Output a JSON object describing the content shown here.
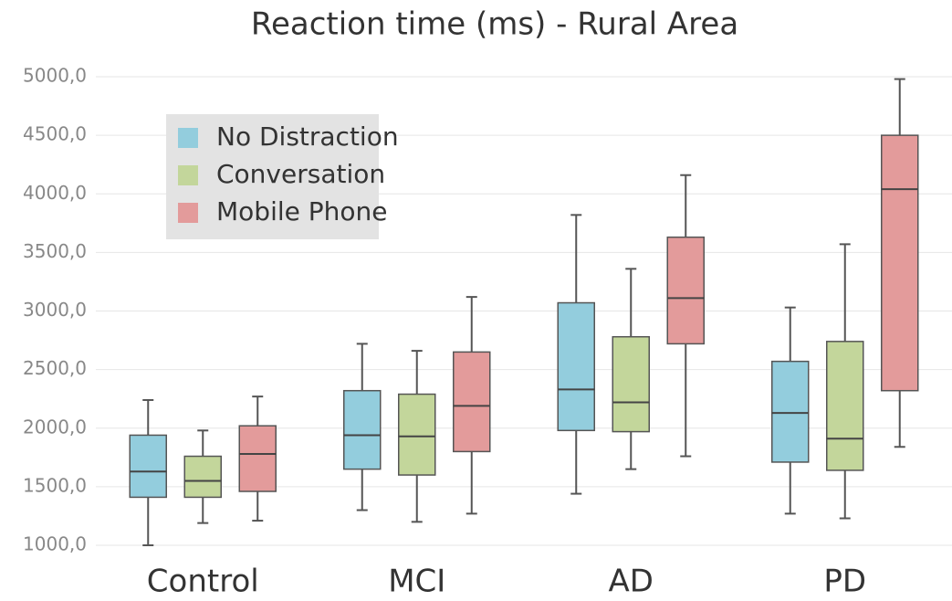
{
  "chart_data": {
    "type": "box",
    "title": "Reaction time (ms) - Rural Area",
    "categories": [
      "Control",
      "MCI",
      "AD",
      "PD"
    ],
    "ylim": [
      1000,
      5000
    ],
    "yticks": [
      {
        "value": 1000,
        "label": "1000,0"
      },
      {
        "value": 1500,
        "label": "1500,0"
      },
      {
        "value": 2000,
        "label": "2000,0"
      },
      {
        "value": 2500,
        "label": "2500,0"
      },
      {
        "value": 3000,
        "label": "3000,0"
      },
      {
        "value": 3500,
        "label": "3500,0"
      },
      {
        "value": 4000,
        "label": "4000,0"
      },
      {
        "value": 4500,
        "label": "4500,0"
      },
      {
        "value": 5000,
        "label": "5000,0"
      }
    ],
    "grid": true,
    "legend": "upper left",
    "series": [
      {
        "name": "No Distraction",
        "color": "#93cddd",
        "values": [
          {
            "min": 1000,
            "q1": 1410,
            "median": 1630,
            "q3": 1940,
            "max": 2240
          },
          {
            "min": 1300,
            "q1": 1650,
            "median": 1940,
            "q3": 2320,
            "max": 2720
          },
          {
            "min": 1440,
            "q1": 1980,
            "median": 2330,
            "q3": 3070,
            "max": 3820
          },
          {
            "min": 1270,
            "q1": 1710,
            "median": 2130,
            "q3": 2570,
            "max": 3030
          }
        ]
      },
      {
        "name": "Conversation",
        "color": "#c3d69b",
        "values": [
          {
            "min": 1190,
            "q1": 1410,
            "median": 1550,
            "q3": 1760,
            "max": 1980
          },
          {
            "min": 1200,
            "q1": 1600,
            "median": 1930,
            "q3": 2290,
            "max": 2660
          },
          {
            "min": 1650,
            "q1": 1970,
            "median": 2220,
            "q3": 2780,
            "max": 3360
          },
          {
            "min": 1230,
            "q1": 1640,
            "median": 1910,
            "q3": 2740,
            "max": 3570
          }
        ]
      },
      {
        "name": "Mobile Phone",
        "color": "#e39b9b",
        "values": [
          {
            "min": 1210,
            "q1": 1460,
            "median": 1780,
            "q3": 2020,
            "max": 2270
          },
          {
            "min": 1270,
            "q1": 1800,
            "median": 2190,
            "q3": 2650,
            "max": 3120
          },
          {
            "min": 1760,
            "q1": 2720,
            "median": 3110,
            "q3": 3630,
            "max": 4160
          },
          {
            "min": 1840,
            "q1": 2320,
            "median": 4040,
            "q3": 4500,
            "max": 4980
          }
        ]
      }
    ]
  }
}
